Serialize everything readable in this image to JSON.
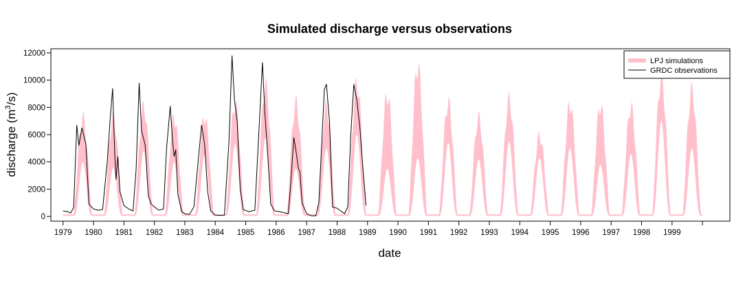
{
  "chart_data": {
    "type": "area",
    "title": "Simulated discharge versus observations",
    "xlabel": "date",
    "ylabel": "discharge (m",
    "ylabel_superscript": "3",
    "ylabel_suffix": "/s)",
    "xlim": [
      1978.6,
      2000.9
    ],
    "ylim": [
      -350,
      12300
    ],
    "x_ticks": [
      "1979",
      "1980",
      "1981",
      "1982",
      "1983",
      "1984",
      "1985",
      "1986",
      "1987",
      "1988",
      "1989",
      "1990",
      "1991",
      "1992",
      "1993",
      "1994",
      "1995",
      "1996",
      "1997",
      "1998",
      "1999"
    ],
    "y_ticks": [
      0,
      2000,
      4000,
      6000,
      8000,
      10000,
      12000
    ],
    "grid": false,
    "legend_position": "top-right",
    "legend": [
      {
        "label": "LPJ simulations",
        "color": "#ffc0cb",
        "style": "band"
      },
      {
        "label": "GRDC observations",
        "color": "#000000",
        "style": "line"
      }
    ],
    "series": [
      {
        "name": "LPJ simulations",
        "kind": "band",
        "color": "#ffc0cb",
        "annual_peaks": [
          {
            "year": 1979,
            "upper": 7200,
            "lower": 4000
          },
          {
            "year": 1980,
            "upper": 7200,
            "lower": 3600
          },
          {
            "year": 1981,
            "upper": 8000,
            "lower": 4800
          },
          {
            "year": 1982,
            "upper": 7200,
            "lower": 4000
          },
          {
            "year": 1983,
            "upper": 7300,
            "lower": 4500
          },
          {
            "year": 1984,
            "upper": 8200,
            "lower": 5300
          },
          {
            "year": 1985,
            "upper": 9500,
            "lower": 5800
          },
          {
            "year": 1986,
            "upper": 8300,
            "lower": 3500
          },
          {
            "year": 1987,
            "upper": 8000,
            "lower": 5000
          },
          {
            "year": 1988,
            "upper": 9700,
            "lower": 6000
          },
          {
            "year": 1989,
            "upper": 8900,
            "lower": 3500
          },
          {
            "year": 1990,
            "upper": 11000,
            "lower": 4300
          },
          {
            "year": 1991,
            "upper": 8300,
            "lower": 5400
          },
          {
            "year": 1992,
            "upper": 7200,
            "lower": 4200
          },
          {
            "year": 1993,
            "upper": 8500,
            "lower": 5500
          },
          {
            "year": 1994,
            "upper": 5900,
            "lower": 4300
          },
          {
            "year": 1995,
            "upper": 8200,
            "lower": 5000
          },
          {
            "year": 1996,
            "upper": 8100,
            "lower": 3800
          },
          {
            "year": 1997,
            "upper": 8000,
            "lower": 4600
          },
          {
            "year": 1998,
            "upper": 10200,
            "lower": 7000
          },
          {
            "year": 1999,
            "upper": 9200,
            "lower": 5000
          }
        ]
      },
      {
        "name": "GRDC observations",
        "kind": "line",
        "color": "#000000",
        "points": [
          [
            1979.0,
            400
          ],
          [
            1979.15,
            350
          ],
          [
            1979.25,
            250
          ],
          [
            1979.35,
            650
          ],
          [
            1979.45,
            6700
          ],
          [
            1979.52,
            5200
          ],
          [
            1979.62,
            6500
          ],
          [
            1979.75,
            5300
          ],
          [
            1979.85,
            900
          ],
          [
            1980.0,
            550
          ],
          [
            1980.15,
            450
          ],
          [
            1980.3,
            500
          ],
          [
            1980.45,
            4000
          ],
          [
            1980.55,
            7200
          ],
          [
            1980.63,
            9400
          ],
          [
            1980.7,
            4500
          ],
          [
            1980.74,
            2700
          ],
          [
            1980.8,
            4400
          ],
          [
            1980.87,
            1800
          ],
          [
            1981.0,
            800
          ],
          [
            1981.15,
            550
          ],
          [
            1981.3,
            400
          ],
          [
            1981.4,
            3500
          ],
          [
            1981.5,
            9800
          ],
          [
            1981.58,
            6300
          ],
          [
            1981.7,
            5200
          ],
          [
            1981.8,
            1500
          ],
          [
            1981.9,
            900
          ],
          [
            1982.0,
            700
          ],
          [
            1982.15,
            450
          ],
          [
            1982.3,
            550
          ],
          [
            1982.4,
            5000
          ],
          [
            1982.52,
            8100
          ],
          [
            1982.6,
            5500
          ],
          [
            1982.65,
            4400
          ],
          [
            1982.7,
            4900
          ],
          [
            1982.77,
            1600
          ],
          [
            1982.9,
            350
          ],
          [
            1983.0,
            200
          ],
          [
            1983.15,
            150
          ],
          [
            1983.3,
            700
          ],
          [
            1983.42,
            3600
          ],
          [
            1983.55,
            6700
          ],
          [
            1983.65,
            5300
          ],
          [
            1983.75,
            1800
          ],
          [
            1983.85,
            400
          ],
          [
            1984.0,
            100
          ],
          [
            1984.15,
            80
          ],
          [
            1984.3,
            100
          ],
          [
            1984.45,
            5500
          ],
          [
            1984.55,
            11800
          ],
          [
            1984.63,
            8500
          ],
          [
            1984.72,
            7000
          ],
          [
            1984.82,
            2000
          ],
          [
            1984.92,
            500
          ],
          [
            1985.1,
            350
          ],
          [
            1985.3,
            450
          ],
          [
            1985.45,
            7000
          ],
          [
            1985.55,
            11300
          ],
          [
            1985.63,
            7500
          ],
          [
            1985.72,
            4600
          ],
          [
            1985.82,
            900
          ],
          [
            1985.95,
            400
          ],
          [
            1986.1,
            350
          ],
          [
            1986.3,
            250
          ],
          [
            1986.4,
            200
          ],
          [
            1986.48,
            2500
          ],
          [
            1986.58,
            5800
          ],
          [
            1986.65,
            4800
          ],
          [
            1986.73,
            3500
          ],
          [
            1986.78,
            3300
          ],
          [
            1986.85,
            1000
          ],
          [
            1987.0,
            200
          ],
          [
            1987.15,
            50
          ],
          [
            1987.3,
            50
          ],
          [
            1987.4,
            1000
          ],
          [
            1987.5,
            5500
          ],
          [
            1987.58,
            9300
          ],
          [
            1987.65,
            9700
          ],
          [
            1987.75,
            7000
          ],
          [
            1987.85,
            700
          ],
          [
            1988.0,
            600
          ],
          [
            1988.15,
            350
          ],
          [
            1988.25,
            200
          ],
          [
            1988.35,
            700
          ],
          [
            1988.45,
            6000
          ],
          [
            1988.55,
            9700
          ],
          [
            1988.65,
            8500
          ],
          [
            1988.75,
            6500
          ],
          [
            1988.85,
            3500
          ],
          [
            1988.95,
            800
          ]
        ]
      }
    ]
  }
}
